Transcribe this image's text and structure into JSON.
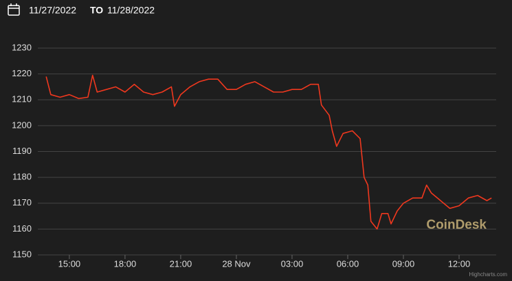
{
  "chart_data": {
    "type": "line",
    "date_from": "11/27/2022",
    "date_separator": "TO",
    "date_to": "11/28/2022",
    "watermark": "CoinDesk",
    "credits": "Highcharts.com",
    "x": [
      "2022-11-27T13:45",
      "2022-11-27T14:00",
      "2022-11-27T14:30",
      "2022-11-27T15:00",
      "2022-11-27T15:30",
      "2022-11-27T16:00",
      "2022-11-27T16:15",
      "2022-11-27T16:30",
      "2022-11-27T17:00",
      "2022-11-27T17:30",
      "2022-11-27T18:00",
      "2022-11-27T18:30",
      "2022-11-27T19:00",
      "2022-11-27T19:30",
      "2022-11-27T20:00",
      "2022-11-27T20:30",
      "2022-11-27T20:40",
      "2022-11-27T21:00",
      "2022-11-27T21:30",
      "2022-11-27T22:00",
      "2022-11-27T22:30",
      "2022-11-27T23:00",
      "2022-11-27T23:30",
      "2022-11-28T00:00",
      "2022-11-28T00:30",
      "2022-11-28T01:00",
      "2022-11-28T01:30",
      "2022-11-28T02:00",
      "2022-11-28T02:30",
      "2022-11-28T03:00",
      "2022-11-28T03:30",
      "2022-11-28T04:00",
      "2022-11-28T04:25",
      "2022-11-28T04:35",
      "2022-11-28T05:00",
      "2022-11-28T05:10",
      "2022-11-28T05:24",
      "2022-11-28T05:45",
      "2022-11-28T06:15",
      "2022-11-28T06:40",
      "2022-11-28T06:53",
      "2022-11-28T07:05",
      "2022-11-28T07:15",
      "2022-11-28T07:35",
      "2022-11-28T07:50",
      "2022-11-28T08:10",
      "2022-11-28T08:20",
      "2022-11-28T08:40",
      "2022-11-28T09:00",
      "2022-11-28T09:30",
      "2022-11-28T10:00",
      "2022-11-28T10:15",
      "2022-11-28T10:30",
      "2022-11-28T11:00",
      "2022-11-28T11:30",
      "2022-11-28T12:00",
      "2022-11-28T12:30",
      "2022-11-28T13:00",
      "2022-11-28T13:30",
      "2022-11-28T13:45"
    ],
    "series": [
      {
        "color": "#f0381e",
        "values": [
          1219,
          1212,
          1211,
          1212,
          1210.5,
          1211,
          1219.5,
          1213,
          1214,
          1215,
          1213,
          1216,
          1213,
          1212,
          1213,
          1215,
          1207.5,
          1212,
          1215,
          1217,
          1218,
          1218,
          1214,
          1214,
          1216,
          1217,
          1215,
          1213,
          1213,
          1214,
          1214,
          1216,
          1216,
          1208,
          1204,
          1198,
          1192,
          1197,
          1198,
          1195,
          1180,
          1177,
          1163,
          1160,
          1166,
          1166,
          1162,
          1167,
          1170,
          1172,
          1172,
          1177,
          1174,
          1171,
          1168,
          1169,
          1172,
          1173,
          1171,
          1172
        ]
      }
    ],
    "xlim": [
      "2022-11-27T13:18",
      "2022-11-28T14:00"
    ],
    "xticks": [
      {
        "value": "2022-11-27T15:00",
        "label": "15:00"
      },
      {
        "value": "2022-11-27T18:00",
        "label": "18:00"
      },
      {
        "value": "2022-11-27T21:00",
        "label": "21:00"
      },
      {
        "value": "2022-11-28T00:00",
        "label": "28 Nov"
      },
      {
        "value": "2022-11-28T03:00",
        "label": "03:00"
      },
      {
        "value": "2022-11-28T06:00",
        "label": "06:00"
      },
      {
        "value": "2022-11-28T09:00",
        "label": "09:00"
      },
      {
        "value": "2022-11-28T12:00",
        "label": "12:00"
      }
    ],
    "ylim": [
      1150,
      1230
    ],
    "yticks": [
      1150,
      1160,
      1170,
      1180,
      1190,
      1200,
      1210,
      1220,
      1230
    ],
    "grid": true
  }
}
